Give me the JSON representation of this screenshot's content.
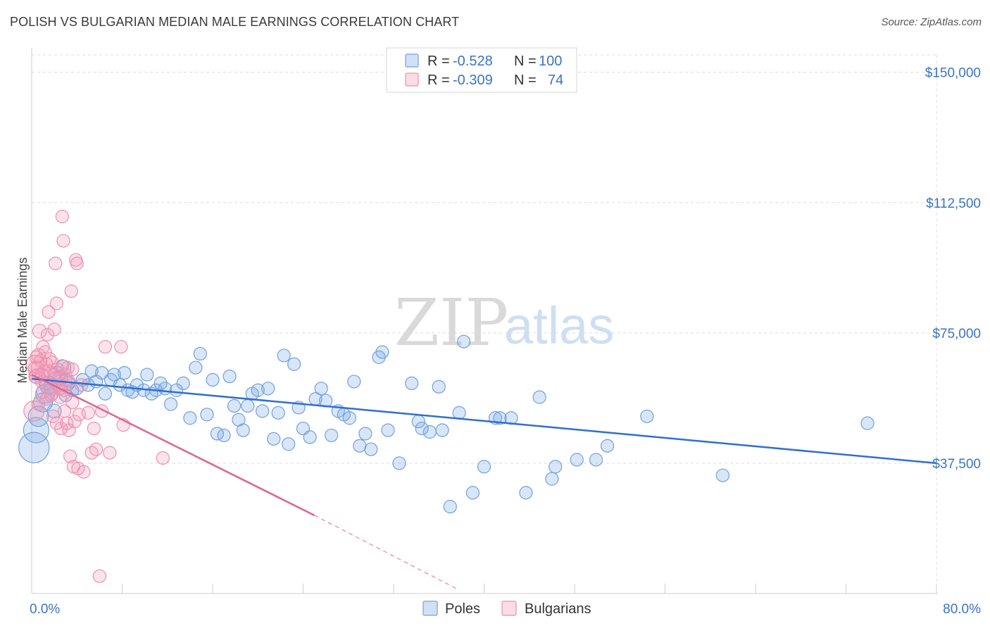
{
  "header": {
    "title": "POLISH VS BULGARIAN MEDIAN MALE EARNINGS CORRELATION CHART",
    "source": "Source: ZipAtlas.com"
  },
  "watermark": {
    "text_zip": "ZIP",
    "text_atlas": "atlas"
  },
  "stats_legend": {
    "rows": [
      {
        "r_label": "R =",
        "r_value": "-0.528",
        "n_label": "N =",
        "n_value": "100",
        "color": "#6fa0e0"
      },
      {
        "r_label": "R =",
        "r_value": "-0.309",
        "n_label": "N =",
        "n_value": "74",
        "color": "#f29bb6"
      }
    ]
  },
  "bottom_legend": {
    "items": [
      {
        "label": "Poles",
        "color": "#6fa0e0"
      },
      {
        "label": "Bulgarians",
        "color": "#f29bb6"
      }
    ]
  },
  "colors": {
    "poles_fill": "rgba(120,165,225,0.28)",
    "poles_stroke": "#6fa0e0",
    "poles_line": "#2f6fd0",
    "bulg_fill": "rgba(242,155,182,0.28)",
    "bulg_stroke": "#ee8fae",
    "bulg_line": "#e2628e"
  },
  "chart_data": {
    "type": "scatter",
    "title": "POLISH VS BULGARIAN MEDIAN MALE EARNINGS CORRELATION CHART",
    "xlabel": "",
    "ylabel": "Median Male Earnings",
    "xlim": [
      0,
      80
    ],
    "ylim": [
      0,
      155000
    ],
    "x_tick_labels": [
      "0.0%",
      "80.0%"
    ],
    "y_ticks": [
      37500,
      75000,
      112500,
      150000
    ],
    "y_tick_labels": [
      "$37,500",
      "$75,000",
      "$112,500",
      "$150,000"
    ],
    "grid": true,
    "series": [
      {
        "name": "Poles",
        "trend": {
          "x1": 0,
          "y1": 61800,
          "x2": 80,
          "y2": 37500,
          "dashed_after": null
        },
        "points": [
          [
            0.2,
            42000,
            2.4
          ],
          [
            0.4,
            47000,
            2.0
          ],
          [
            0.6,
            51000,
            1.6
          ],
          [
            1.0,
            55000,
            1.5
          ],
          [
            1.2,
            57500,
            1.5
          ],
          [
            1.5,
            60000,
            1.4
          ],
          [
            1.8,
            59500,
            1.3
          ],
          [
            2.2,
            63000,
            1.3
          ],
          [
            2.5,
            62000,
            1.2
          ],
          [
            2.8,
            65000,
            1.2
          ],
          [
            3.2,
            60500,
            1.1
          ],
          [
            3.6,
            58500,
            1.0
          ],
          [
            4.0,
            59000,
            1.0
          ],
          [
            4.5,
            61500,
            1.0
          ],
          [
            5.0,
            60000,
            1.0
          ],
          [
            5.3,
            64000,
            1.0
          ],
          [
            5.7,
            61000,
            1.0
          ],
          [
            6.2,
            63500,
            1.0
          ],
          [
            6.5,
            57500,
            1.0
          ],
          [
            7.0,
            61500,
            1.0
          ],
          [
            7.3,
            63000,
            1.0
          ],
          [
            7.8,
            60000,
            1.0
          ],
          [
            8.2,
            63500,
            1.0
          ],
          [
            8.5,
            58500,
            1.0
          ],
          [
            8.9,
            58000,
            1.0
          ],
          [
            9.3,
            60000,
            1.0
          ],
          [
            9.9,
            58500,
            1.0
          ],
          [
            10.2,
            63000,
            1.0
          ],
          [
            10.6,
            57500,
            1.0
          ],
          [
            11.0,
            58500,
            1.0
          ],
          [
            11.4,
            60500,
            1.0
          ],
          [
            11.8,
            59000,
            1.0
          ],
          [
            12.3,
            54500,
            1.0
          ],
          [
            12.8,
            58500,
            1.0
          ],
          [
            13.4,
            60500,
            1.0
          ],
          [
            14.0,
            50500,
            1.0
          ],
          [
            14.5,
            65000,
            1.0
          ],
          [
            14.9,
            69000,
            1.0
          ],
          [
            15.5,
            51500,
            1.0
          ],
          [
            16.0,
            61500,
            1.0
          ],
          [
            16.4,
            46000,
            1.0
          ],
          [
            17.0,
            45500,
            1.0
          ],
          [
            17.5,
            62500,
            1.0
          ],
          [
            17.9,
            54000,
            1.0
          ],
          [
            18.3,
            50000,
            1.0
          ],
          [
            18.7,
            47000,
            1.0
          ],
          [
            19.1,
            54000,
            1.0
          ],
          [
            19.5,
            57500,
            1.0
          ],
          [
            20.0,
            58500,
            1.0
          ],
          [
            20.4,
            52500,
            1.0
          ],
          [
            20.9,
            59000,
            1.0
          ],
          [
            21.4,
            44500,
            1.0
          ],
          [
            21.8,
            52000,
            1.0
          ],
          [
            22.3,
            68500,
            1.0
          ],
          [
            22.7,
            43000,
            1.0
          ],
          [
            23.2,
            66000,
            1.0
          ],
          [
            23.6,
            53500,
            1.0
          ],
          [
            24.0,
            47500,
            1.0
          ],
          [
            24.6,
            45000,
            1.0
          ],
          [
            25.1,
            56000,
            1.0
          ],
          [
            25.6,
            59000,
            1.0
          ],
          [
            26.0,
            55500,
            1.0
          ],
          [
            26.5,
            45500,
            1.0
          ],
          [
            27.1,
            52500,
            1.0
          ],
          [
            27.6,
            51500,
            1.0
          ],
          [
            28.1,
            50500,
            1.0
          ],
          [
            28.5,
            61000,
            1.0
          ],
          [
            29.0,
            42500,
            1.0
          ],
          [
            29.5,
            46000,
            1.0
          ],
          [
            30.0,
            41500,
            1.0
          ],
          [
            30.7,
            68000,
            1.0
          ],
          [
            31.0,
            69500,
            1.0
          ],
          [
            31.5,
            47000,
            1.0
          ],
          [
            32.5,
            37500,
            1.0
          ],
          [
            33.6,
            60500,
            1.0
          ],
          [
            34.2,
            49500,
            1.0
          ],
          [
            34.5,
            47500,
            1.0
          ],
          [
            35.2,
            46500,
            1.0
          ],
          [
            36.0,
            59500,
            1.0
          ],
          [
            36.3,
            47000,
            1.0
          ],
          [
            37.0,
            25000,
            1.0
          ],
          [
            37.8,
            52000,
            1.0
          ],
          [
            38.2,
            72500,
            1.0
          ],
          [
            39.0,
            29000,
            1.0
          ],
          [
            40.0,
            36500,
            1.0
          ],
          [
            41.0,
            50500,
            1.0
          ],
          [
            41.4,
            50500,
            1.0
          ],
          [
            42.4,
            50500,
            1.0
          ],
          [
            43.7,
            29000,
            1.0
          ],
          [
            44.9,
            56500,
            1.0
          ],
          [
            46.0,
            33000,
            1.0
          ],
          [
            46.3,
            36500,
            1.0
          ],
          [
            48.2,
            38500,
            1.0
          ],
          [
            49.9,
            38500,
            1.0
          ],
          [
            50.9,
            42500,
            1.0
          ],
          [
            54.4,
            51000,
            1.0
          ],
          [
            61.1,
            34000,
            1.0
          ],
          [
            73.9,
            49000,
            1.0
          ],
          [
            2.0,
            52500,
            1.1
          ],
          [
            3.0,
            57000,
            1.0
          ]
        ]
      },
      {
        "name": "Bulgarians",
        "trend": {
          "x1": 0,
          "y1": 63000,
          "x2": 25,
          "y2": 22500,
          "dashed_to_x": 37.8,
          "dashed_to_y": 1000
        },
        "points": [
          [
            0.2,
            52500,
            1.6
          ],
          [
            0.3,
            66000,
            1.4
          ],
          [
            0.4,
            64500,
            1.3
          ],
          [
            0.5,
            62500,
            1.2
          ],
          [
            0.6,
            68500,
            1.1
          ],
          [
            0.7,
            75500,
            1.1
          ],
          [
            0.8,
            67000,
            1.0
          ],
          [
            0.9,
            61000,
            1.0
          ],
          [
            1.0,
            58000,
            1.0
          ],
          [
            1.1,
            64000,
            1.0
          ],
          [
            1.2,
            69500,
            1.0
          ],
          [
            1.3,
            56000,
            1.0
          ],
          [
            1.4,
            74500,
            1.0
          ],
          [
            1.5,
            81000,
            1.0
          ],
          [
            1.6,
            67500,
            1.0
          ],
          [
            1.7,
            63500,
            1.0
          ],
          [
            1.8,
            57500,
            1.0
          ],
          [
            1.9,
            51000,
            1.0
          ],
          [
            2.0,
            76000,
            1.0
          ],
          [
            2.1,
            95000,
            1.0
          ],
          [
            2.2,
            83500,
            1.0
          ],
          [
            2.3,
            64500,
            1.0
          ],
          [
            2.4,
            62000,
            1.0
          ],
          [
            2.5,
            56500,
            1.0
          ],
          [
            2.6,
            47500,
            1.0
          ],
          [
            2.7,
            108500,
            1.0
          ],
          [
            2.8,
            101500,
            1.0
          ],
          [
            2.9,
            58500,
            1.0
          ],
          [
            3.0,
            63000,
            1.0
          ],
          [
            3.1,
            49000,
            1.0
          ],
          [
            3.2,
            65000,
            1.0
          ],
          [
            3.3,
            47000,
            1.0
          ],
          [
            3.4,
            39500,
            1.0
          ],
          [
            3.5,
            87000,
            1.0
          ],
          [
            3.6,
            55000,
            1.0
          ],
          [
            3.7,
            36500,
            1.0
          ],
          [
            3.8,
            49500,
            1.0
          ],
          [
            3.9,
            96000,
            1.0
          ],
          [
            4.0,
            95000,
            1.0
          ],
          [
            4.1,
            36000,
            1.0
          ],
          [
            4.2,
            51500,
            1.0
          ],
          [
            4.4,
            60000,
            1.0
          ],
          [
            4.6,
            35000,
            1.0
          ],
          [
            5.0,
            52000,
            1.0
          ],
          [
            5.3,
            40500,
            1.0
          ],
          [
            5.5,
            47500,
            1.0
          ],
          [
            5.7,
            41500,
            1.0
          ],
          [
            6.0,
            5000,
            1.0
          ],
          [
            6.2,
            52500,
            1.0
          ],
          [
            6.5,
            71000,
            1.0
          ],
          [
            6.9,
            40500,
            1.0
          ],
          [
            7.9,
            71000,
            1.0
          ],
          [
            8.1,
            48500,
            1.0
          ],
          [
            11.6,
            39000,
            1.0
          ],
          [
            0.3,
            62500,
            1.0
          ],
          [
            0.5,
            65000,
            1.0
          ],
          [
            0.9,
            63000,
            1.0
          ],
          [
            1.2,
            60500,
            1.0
          ],
          [
            1.5,
            64000,
            1.0
          ],
          [
            1.8,
            66500,
            1.0
          ],
          [
            2.1,
            62000,
            1.0
          ],
          [
            2.4,
            60000,
            1.0
          ],
          [
            2.7,
            65500,
            1.0
          ],
          [
            3.0,
            61500,
            1.0
          ],
          [
            1.0,
            71000,
            1.0
          ],
          [
            2.5,
            59000,
            1.0
          ],
          [
            1.3,
            66000,
            1.0
          ],
          [
            0.4,
            68000,
            1.0
          ],
          [
            3.6,
            64500,
            1.0
          ],
          [
            2.9,
            52500,
            1.0
          ],
          [
            1.7,
            57000,
            1.0
          ],
          [
            0.6,
            54500,
            1.0
          ],
          [
            2.2,
            49000,
            1.0
          ],
          [
            3.3,
            61000,
            1.0
          ]
        ]
      }
    ]
  }
}
